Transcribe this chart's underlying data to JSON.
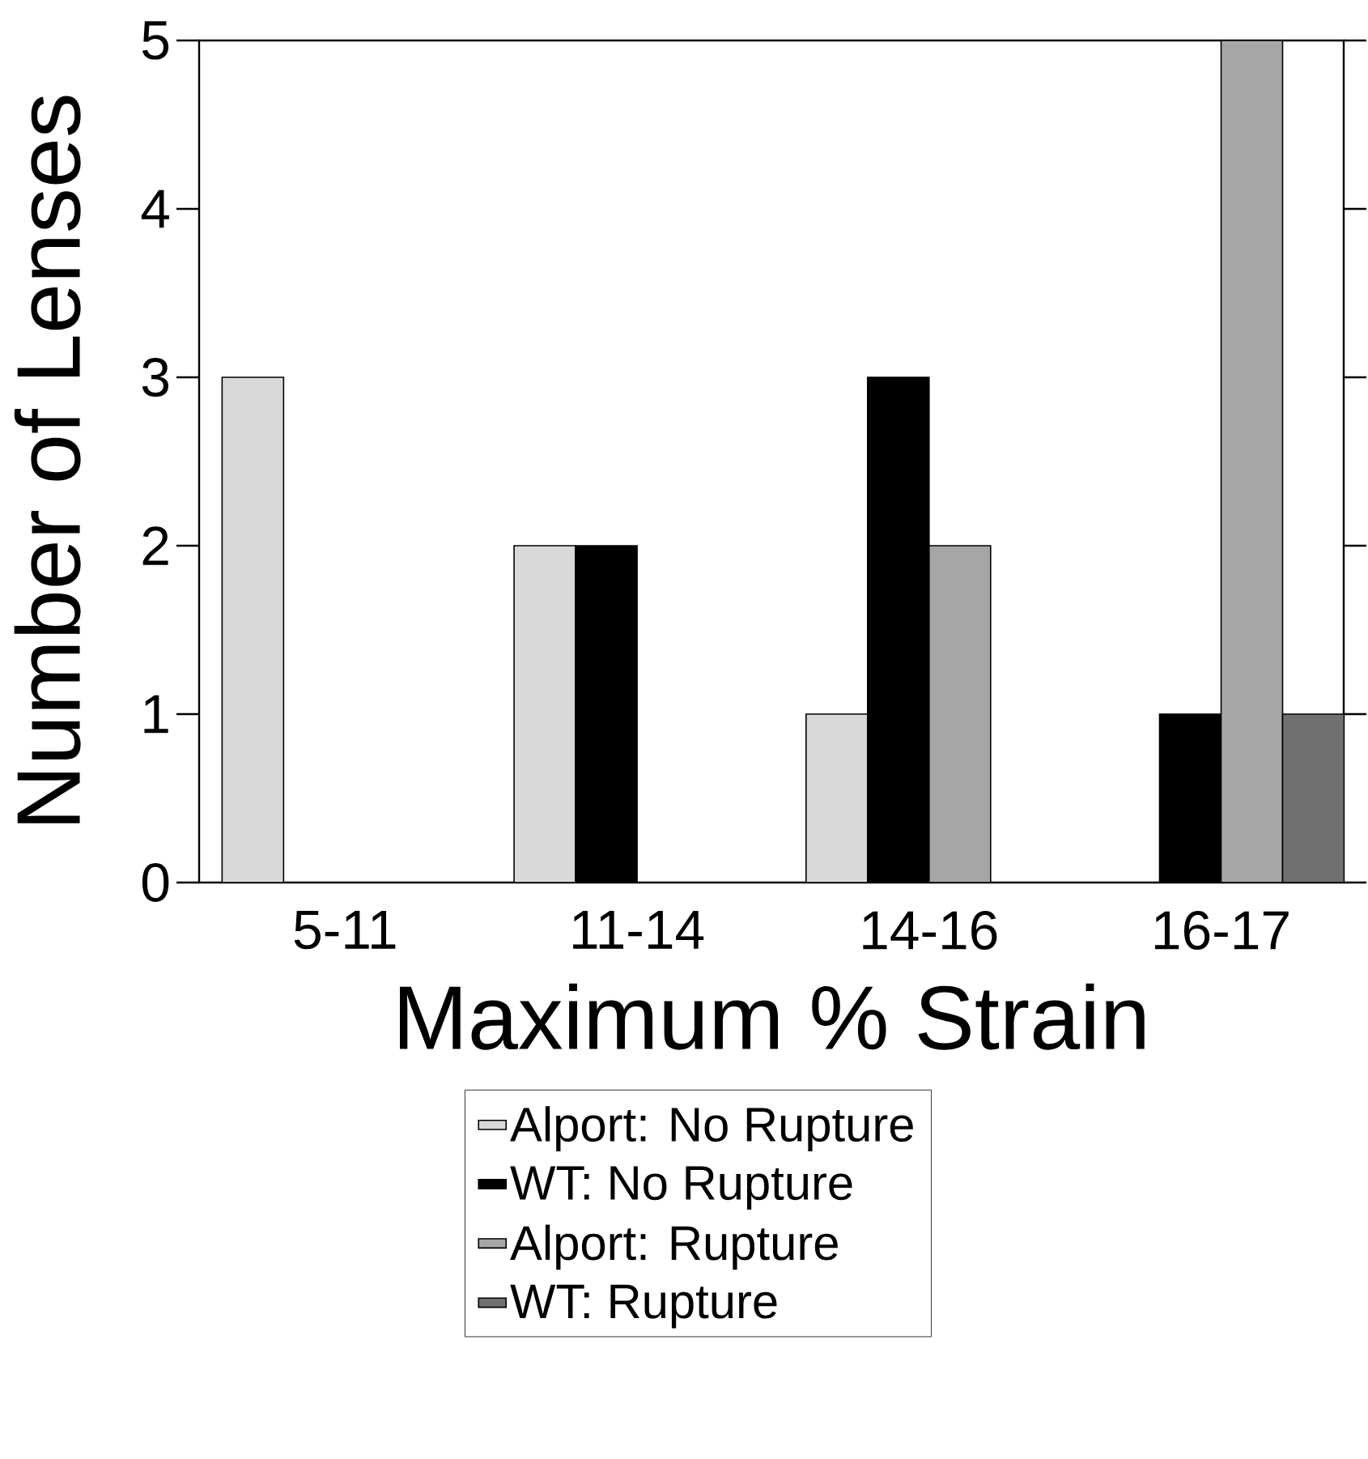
{
  "chart_data": {
    "type": "bar",
    "xlabel": "Maximum % Strain",
    "ylabel": "Number of Lenses",
    "categories": [
      "5-11",
      "11-14",
      "14-16",
      "16-17"
    ],
    "series": [
      {
        "name": "Alport: No Rupture",
        "color": "#d9d9d9",
        "values": [
          3,
          2,
          1,
          0
        ]
      },
      {
        "name": "WT: No Rupture",
        "color": "#000000",
        "values": [
          0,
          2,
          3,
          1
        ]
      },
      {
        "name": "Alport: Rupture",
        "color": "#a6a6a6",
        "values": [
          0,
          0,
          2,
          5
        ]
      },
      {
        "name": "WT: Rupture",
        "color": "#707070",
        "values": [
          0,
          0,
          0,
          1
        ]
      }
    ],
    "ylim": [
      0,
      5
    ],
    "yticks": [
      0,
      1,
      2,
      3,
      4,
      5
    ],
    "legend": "bottom"
  }
}
